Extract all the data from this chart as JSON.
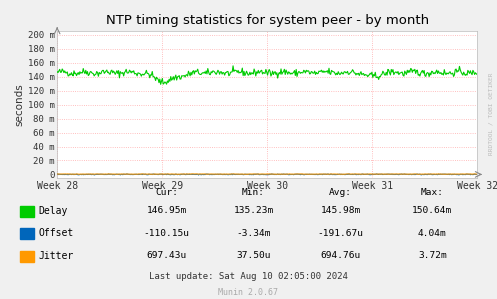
{
  "title": "NTP timing statistics for system peer - by month",
  "ylabel": "seconds",
  "background_color": "#f0f0f0",
  "plot_bg_color": "#ffffff",
  "grid_color": "#ffaaaa",
  "ylim": [
    -5,
    205
  ],
  "yticks": [
    0,
    20,
    40,
    60,
    80,
    100,
    120,
    140,
    160,
    180,
    200
  ],
  "ytick_labels": [
    "0",
    "20 m",
    "40 m",
    "60 m",
    "80 m",
    "100 m",
    "120 m",
    "140 m",
    "160 m",
    "180 m",
    "200 m"
  ],
  "xtick_labels": [
    "Week 28",
    "Week 29",
    "Week 30",
    "Week 31",
    "Week 32"
  ],
  "delay_color": "#00cc00",
  "offset_color": "#0066bb",
  "jitter_color": "#ff9900",
  "n_points": 500,
  "legend_items": [
    {
      "label": "Delay",
      "color": "#00cc00"
    },
    {
      "label": "Offset",
      "color": "#0066bb"
    },
    {
      "label": "Jitter",
      "color": "#ff9900"
    }
  ],
  "stats_header": [
    "Cur:",
    "Min:",
    "Avg:",
    "Max:"
  ],
  "stats_delay": [
    "146.95m",
    "135.23m",
    "145.98m",
    "150.64m"
  ],
  "stats_offset": [
    "-110.15u",
    "-3.34m",
    "-191.67u",
    "4.04m"
  ],
  "stats_jitter": [
    "697.43u",
    "37.50u",
    "694.76u",
    "3.72m"
  ],
  "last_update": "Last update: Sat Aug 10 02:05:00 2024",
  "munin_version": "Munin 2.0.67",
  "rrdtool_label": "RRDTOOL / TOBI OETIKER"
}
